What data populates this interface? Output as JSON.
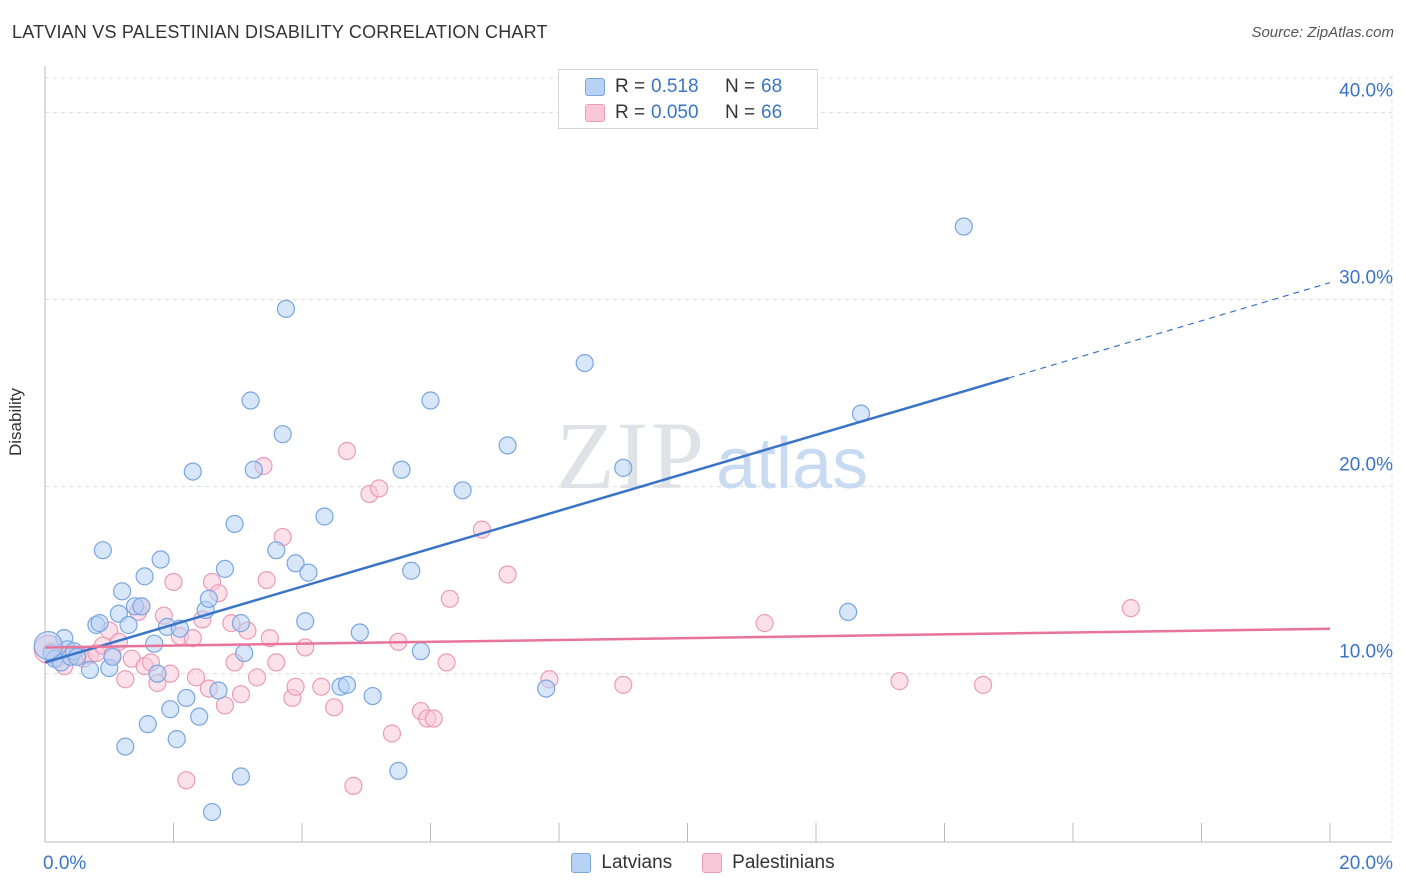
{
  "title": "LATVIAN VS PALESTINIAN DISABILITY CORRELATION CHART",
  "source": "Source: ZipAtlas.com",
  "watermark": {
    "zip": "ZIP",
    "atlas": "atlas"
  },
  "colors": {
    "blue": "#3a74c8",
    "blue_fill": "#b7d2f4",
    "pink": "#e8739b",
    "pink_fill": "#f9c8d8",
    "grid": "#dddddd",
    "tick_text": "#3a74c8"
  },
  "legend": {
    "rows": [
      {
        "r_label": "R =",
        "r_value": "0.518",
        "n_label": "N =",
        "n_value": "68"
      },
      {
        "r_label": "R =",
        "r_value": "0.050",
        "n_label": "N =",
        "n_value": "66"
      }
    ]
  },
  "bottom_legend": {
    "latvians": "Latvians",
    "palestinians": "Palestinians"
  },
  "chart_data": {
    "type": "scatter",
    "title": "LATVIAN VS PALESTINIAN DISABILITY CORRELATION CHART",
    "xlabel": "",
    "ylabel": "Disability",
    "xlim": [
      0,
      20
    ],
    "ylim": [
      1.0,
      42.0
    ],
    "x_tick_labels": [
      "0.0%",
      "20.0%"
    ],
    "y_ticks": [
      10,
      20,
      30,
      40
    ],
    "y_tick_labels": [
      "10.0%",
      "20.0%",
      "30.0%",
      "40.0%"
    ],
    "grid": true,
    "legend_position": "top-center",
    "series": [
      {
        "name": "Latvians",
        "color": "#3a74c8",
        "trend": {
          "x": [
            0.0,
            15.0
          ],
          "y": [
            10.6,
            25.8
          ],
          "extend_to_x": 20.0,
          "extend_y": 30.9
        },
        "points": [
          [
            0.1,
            11.1
          ],
          [
            0.15,
            10.8
          ],
          [
            0.25,
            10.6
          ],
          [
            0.3,
            11.9
          ],
          [
            0.35,
            11.3
          ],
          [
            0.4,
            10.9
          ],
          [
            0.45,
            11.2
          ],
          [
            0.5,
            10.9
          ],
          [
            0.7,
            10.2
          ],
          [
            0.8,
            12.6
          ],
          [
            0.85,
            12.7
          ],
          [
            0.9,
            16.6
          ],
          [
            1.0,
            10.3
          ],
          [
            1.05,
            10.9
          ],
          [
            1.15,
            13.2
          ],
          [
            1.2,
            14.4
          ],
          [
            1.3,
            12.6
          ],
          [
            1.4,
            13.6
          ],
          [
            1.5,
            13.6
          ],
          [
            1.55,
            15.2
          ],
          [
            1.6,
            7.3
          ],
          [
            1.7,
            11.6
          ],
          [
            1.75,
            10.0
          ],
          [
            1.8,
            16.1
          ],
          [
            1.9,
            12.5
          ],
          [
            1.95,
            8.1
          ],
          [
            2.05,
            6.5
          ],
          [
            2.1,
            12.4
          ],
          [
            2.2,
            8.7
          ],
          [
            2.3,
            20.8
          ],
          [
            2.4,
            7.7
          ],
          [
            2.5,
            13.4
          ],
          [
            2.55,
            14.0
          ],
          [
            2.6,
            2.6
          ],
          [
            2.7,
            9.1
          ],
          [
            2.8,
            15.6
          ],
          [
            2.95,
            18.0
          ],
          [
            3.05,
            12.7
          ],
          [
            3.1,
            11.1
          ],
          [
            3.2,
            24.6
          ],
          [
            3.25,
            20.9
          ],
          [
            3.6,
            16.6
          ],
          [
            3.7,
            22.8
          ],
          [
            3.75,
            29.5
          ],
          [
            3.9,
            15.9
          ],
          [
            4.05,
            12.8
          ],
          [
            4.1,
            15.4
          ],
          [
            4.35,
            18.4
          ],
          [
            4.6,
            9.3
          ],
          [
            4.7,
            9.4
          ],
          [
            4.9,
            12.2
          ],
          [
            5.1,
            8.8
          ],
          [
            5.5,
            4.8
          ],
          [
            5.55,
            20.9
          ],
          [
            5.7,
            15.5
          ],
          [
            5.85,
            11.2
          ],
          [
            6.0,
            24.6
          ],
          [
            6.5,
            19.8
          ],
          [
            7.2,
            22.2
          ],
          [
            7.8,
            9.2
          ],
          [
            8.4,
            26.6
          ],
          [
            9.0,
            21.0
          ],
          [
            12.5,
            13.3
          ],
          [
            12.7,
            23.9
          ],
          [
            14.3,
            33.9
          ],
          [
            0.05,
            11.5
          ],
          [
            3.05,
            4.5
          ],
          [
            1.25,
            6.1
          ]
        ]
      },
      {
        "name": "Palestinians",
        "color": "#e8739b",
        "trend": {
          "x": [
            0.0,
            20.0
          ],
          "y": [
            11.4,
            12.4
          ]
        },
        "points": [
          [
            0.1,
            11.2
          ],
          [
            0.2,
            10.8
          ],
          [
            0.3,
            10.4
          ],
          [
            0.4,
            11.1
          ],
          [
            0.5,
            11.0
          ],
          [
            0.6,
            10.8
          ],
          [
            0.7,
            11.0
          ],
          [
            0.8,
            11.1
          ],
          [
            0.9,
            11.5
          ],
          [
            1.0,
            12.3
          ],
          [
            1.05,
            11.0
          ],
          [
            1.15,
            11.7
          ],
          [
            1.25,
            9.7
          ],
          [
            1.35,
            10.8
          ],
          [
            1.45,
            13.3
          ],
          [
            1.55,
            10.4
          ],
          [
            1.65,
            10.6
          ],
          [
            1.75,
            9.5
          ],
          [
            1.85,
            13.1
          ],
          [
            1.95,
            10.0
          ],
          [
            2.0,
            14.9
          ],
          [
            2.1,
            12.0
          ],
          [
            2.2,
            4.3
          ],
          [
            2.3,
            11.9
          ],
          [
            2.35,
            9.8
          ],
          [
            2.45,
            12.9
          ],
          [
            2.55,
            9.2
          ],
          [
            2.6,
            14.9
          ],
          [
            2.7,
            14.3
          ],
          [
            2.8,
            8.3
          ],
          [
            2.9,
            12.7
          ],
          [
            2.95,
            10.6
          ],
          [
            3.05,
            8.9
          ],
          [
            3.15,
            12.3
          ],
          [
            3.3,
            9.8
          ],
          [
            3.4,
            21.1
          ],
          [
            3.45,
            15.0
          ],
          [
            3.5,
            11.9
          ],
          [
            3.6,
            10.6
          ],
          [
            3.7,
            17.3
          ],
          [
            3.85,
            8.7
          ],
          [
            3.9,
            9.3
          ],
          [
            4.05,
            11.4
          ],
          [
            4.3,
            9.3
          ],
          [
            4.5,
            8.2
          ],
          [
            4.7,
            21.9
          ],
          [
            4.8,
            4.0
          ],
          [
            5.05,
            19.6
          ],
          [
            5.2,
            19.9
          ],
          [
            5.4,
            6.8
          ],
          [
            5.5,
            11.7
          ],
          [
            5.85,
            8.0
          ],
          [
            5.95,
            7.6
          ],
          [
            6.05,
            7.6
          ],
          [
            6.25,
            10.6
          ],
          [
            6.3,
            14.0
          ],
          [
            6.8,
            17.7
          ],
          [
            7.2,
            15.3
          ],
          [
            7.85,
            9.7
          ],
          [
            9.0,
            9.4
          ],
          [
            11.2,
            12.7
          ],
          [
            13.3,
            9.6
          ],
          [
            14.6,
            9.4
          ],
          [
            16.9,
            13.5
          ],
          [
            0.05,
            11.3
          ],
          [
            1.5,
            13.6
          ]
        ]
      }
    ]
  }
}
